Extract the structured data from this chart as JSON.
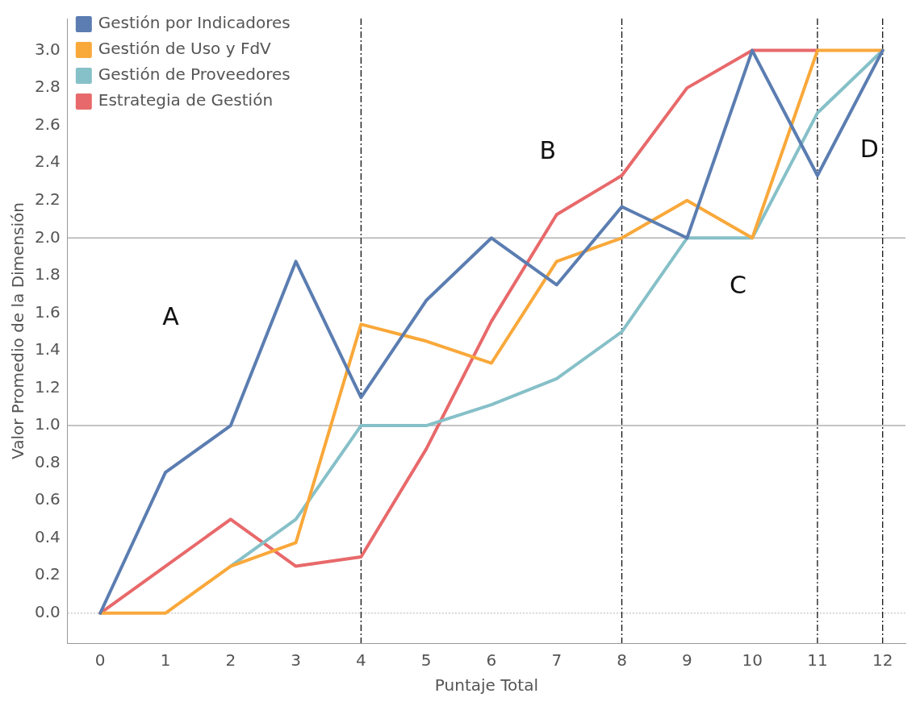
{
  "chart_data": {
    "type": "line",
    "xlabel": "Puntaje Total",
    "ylabel": "Valor Promedio de la Dimensión",
    "x": [
      0,
      1,
      2,
      3,
      4,
      5,
      6,
      7,
      8,
      9,
      10,
      11,
      12
    ],
    "series": [
      {
        "name": "Gestión por Indicadores",
        "color": "#5b7db1",
        "values": [
          0,
          0.75,
          1.0,
          1.875,
          1.15,
          1.667,
          2.0,
          1.75,
          2.167,
          2.0,
          3.0,
          2.333,
          3.0
        ]
      },
      {
        "name": "Gestión de Uso y FdV",
        "color": "#f9a83a",
        "values": [
          0,
          0,
          0.25,
          0.375,
          1.54,
          1.45,
          1.333,
          1.875,
          2.0,
          2.2,
          2.0,
          3.0,
          3.0
        ]
      },
      {
        "name": "Gestión de Proveedores",
        "color": "#86c0c8",
        "values": [
          null,
          null,
          0.25,
          0.5,
          1.0,
          1.0,
          1.111,
          1.25,
          1.5,
          2.0,
          2.0,
          2.667,
          3.0
        ]
      },
      {
        "name": "Estrategia de Gestión",
        "color": "#e8696b",
        "values": [
          0,
          0.25,
          0.5,
          0.25,
          0.3,
          0.875,
          1.556,
          2.125,
          2.333,
          2.8,
          3.0,
          3.0,
          null
        ]
      }
    ],
    "xlim": [
      -0.5,
      12.35
    ],
    "xticks": [
      0,
      1,
      2,
      3,
      4,
      5,
      6,
      7,
      8,
      9,
      10,
      11,
      12
    ],
    "ylim": [
      -0.16,
      3.17
    ],
    "yticks": [
      {
        "value": 0,
        "label": "0.0"
      },
      {
        "value": 0.2,
        "label": "0.2"
      },
      {
        "value": 0.4,
        "label": "0.4"
      },
      {
        "value": 0.6,
        "label": "0.6"
      },
      {
        "value": 0.8,
        "label": "0.8"
      },
      {
        "value": 1,
        "label": "1.0"
      },
      {
        "value": 1.2,
        "label": "1.2"
      },
      {
        "value": 1.4,
        "label": "1.4"
      },
      {
        "value": 1.6,
        "label": "1.6"
      },
      {
        "value": 1.8,
        "label": "1.8"
      },
      {
        "value": 2,
        "label": "2.0"
      },
      {
        "value": 2.2,
        "label": "2.2"
      },
      {
        "value": 2.4,
        "label": "2.4"
      },
      {
        "value": 2.6,
        "label": "2.6"
      },
      {
        "value": 2.8,
        "label": "2.8"
      },
      {
        "value": 3,
        "label": "3.0"
      }
    ],
    "ref_lines": [
      {
        "axis": "y",
        "value": 1,
        "color": "#b0b0b0",
        "line_style": "solid"
      },
      {
        "axis": "y",
        "value": 2,
        "color": "#b0b0b0",
        "line_style": "solid"
      },
      {
        "axis": "y",
        "value": 0,
        "color": "#cccccc",
        "line_style": "dotted"
      },
      {
        "axis": "x",
        "value": 4,
        "color": "#000000",
        "line_style": "dashed"
      },
      {
        "axis": "x",
        "value": 8,
        "color": "#000000",
        "line_style": "dashed"
      },
      {
        "axis": "x",
        "value": 11,
        "color": "#000000",
        "line_style": "dashed"
      },
      {
        "axis": "x",
        "value": 12,
        "color": "#000000",
        "line_style": "dashed"
      }
    ],
    "annotations": [
      "A",
      "B",
      "C",
      "D"
    ],
    "legend": "top left",
    "grid": false,
    "marker": "none",
    "line_style": "solid"
  }
}
